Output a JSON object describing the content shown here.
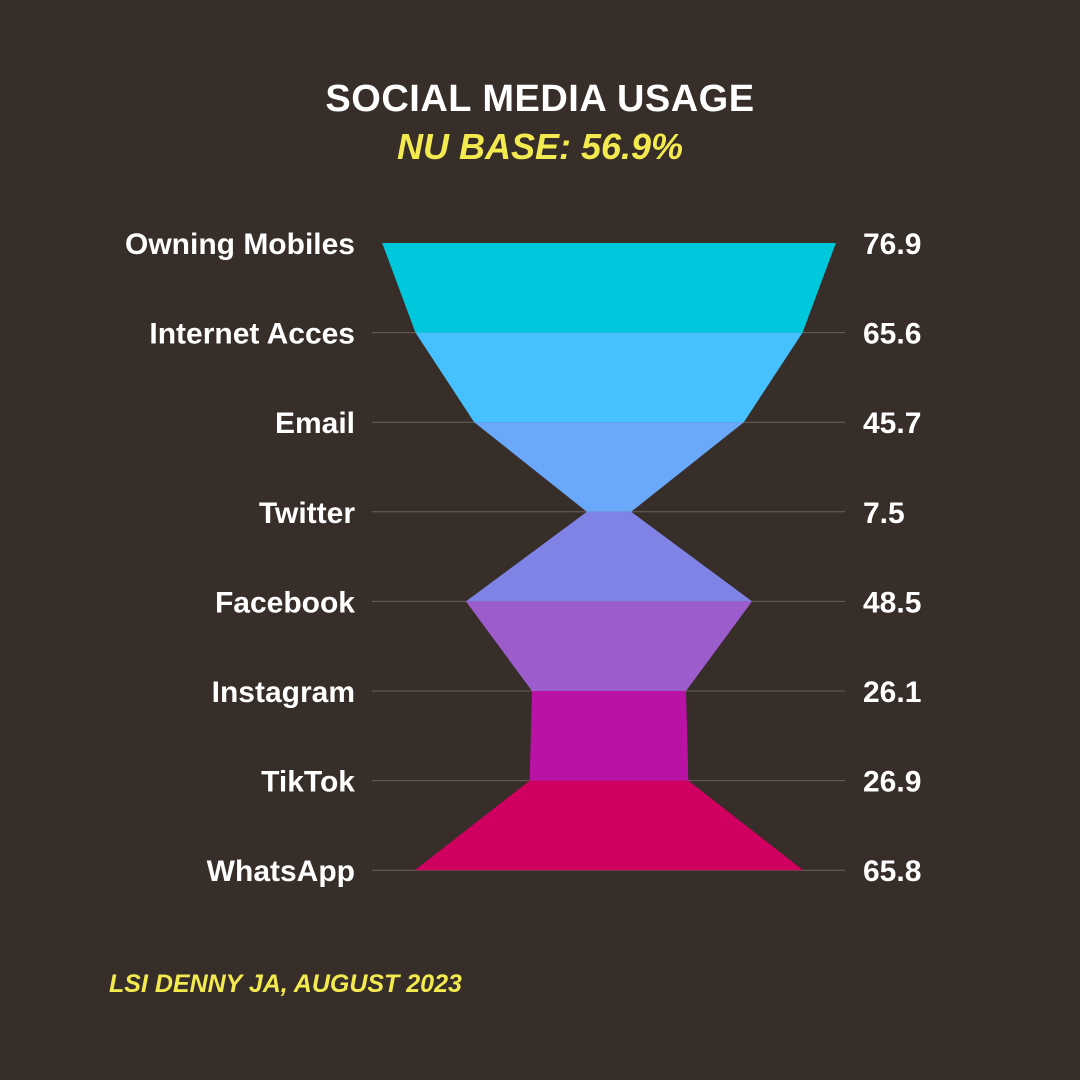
{
  "header": {
    "title": "SOCIAL MEDIA USAGE",
    "subtitle": "NU BASE: 56.9%"
  },
  "footer": {
    "source": "LSI DENNY JA, AUGUST 2023"
  },
  "chart_data": {
    "type": "funnel",
    "title": "SOCIAL MEDIA USAGE",
    "subtitle": "NU BASE: 56.9%",
    "categories": [
      "Owning Mobiles",
      "Internet Acces",
      "Email",
      "Twitter",
      "Facebook",
      "Instagram",
      "TikTok",
      "WhatsApp"
    ],
    "values": [
      76.9,
      65.6,
      45.7,
      7.5,
      48.5,
      26.1,
      26.9,
      65.8
    ],
    "value_labels": [
      "76.9",
      "65.6",
      "45.7",
      "7.5",
      "48.5",
      "26.1",
      "26.9",
      "65.8"
    ],
    "colors": [
      "#00c8dc",
      "#46c1fd",
      "#6aa8fa",
      "#8083e6",
      "#9c5ccc",
      "#ba12a5",
      "#cf005f"
    ],
    "grid": true
  }
}
